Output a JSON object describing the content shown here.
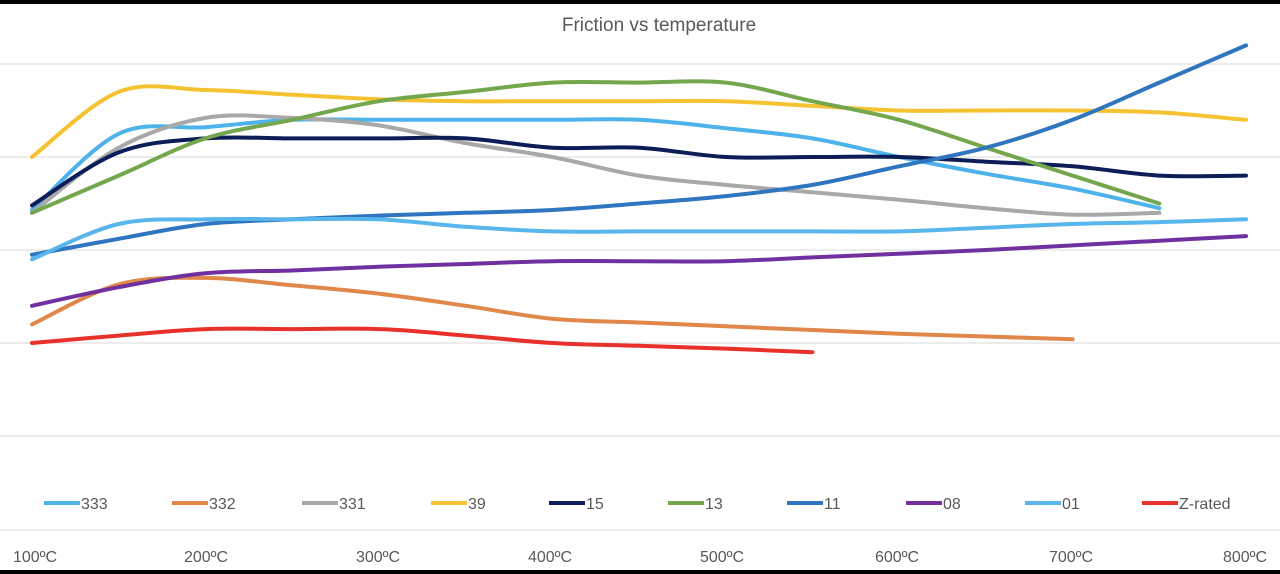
{
  "chart_data": {
    "type": "line",
    "title": "Friction vs temperature",
    "xlabel": "",
    "ylabel": "",
    "x": [
      "100ºC",
      "200ºC",
      "300ºC",
      "400ºC",
      "500ºC",
      "600ºC",
      "700ºC",
      "800ºC"
    ],
    "y_gridlines": [
      0.0,
      0.1,
      0.2,
      0.3,
      0.4,
      0.5
    ],
    "ylim": [
      0.0,
      0.5
    ],
    "grid": true,
    "y_tick_labels_visible": false,
    "legend_position": "bottom",
    "series": [
      {
        "name": "333",
        "color": "#4db3ea",
        "points": [
          [
            100,
            0.243
          ],
          [
            150,
            0.325
          ],
          [
            200,
            0.332
          ],
          [
            250,
            0.34
          ],
          [
            300,
            0.34
          ],
          [
            350,
            0.34
          ],
          [
            400,
            0.34
          ],
          [
            450,
            0.34
          ],
          [
            500,
            0.331
          ],
          [
            550,
            0.32
          ],
          [
            600,
            0.3
          ],
          [
            650,
            0.282
          ],
          [
            700,
            0.266
          ],
          [
            750,
            0.245
          ]
        ]
      },
      {
        "name": "332",
        "color": "#e0874a",
        "points": [
          [
            100,
            0.12
          ],
          [
            150,
            0.163
          ],
          [
            200,
            0.17
          ],
          [
            250,
            0.162
          ],
          [
            300,
            0.153
          ],
          [
            350,
            0.14
          ],
          [
            400,
            0.126
          ],
          [
            450,
            0.122
          ],
          [
            500,
            0.118
          ],
          [
            550,
            0.114
          ],
          [
            600,
            0.11
          ],
          [
            650,
            0.107
          ],
          [
            700,
            0.104
          ]
        ]
      },
      {
        "name": "331",
        "color": "#a8a8a8",
        "points": [
          [
            100,
            0.24
          ],
          [
            150,
            0.31
          ],
          [
            200,
            0.342
          ],
          [
            250,
            0.342
          ],
          [
            300,
            0.334
          ],
          [
            350,
            0.315
          ],
          [
            400,
            0.3
          ],
          [
            450,
            0.28
          ],
          [
            500,
            0.27
          ],
          [
            550,
            0.262
          ],
          [
            600,
            0.254
          ],
          [
            650,
            0.245
          ],
          [
            700,
            0.238
          ],
          [
            750,
            0.24
          ]
        ]
      },
      {
        "name": "39",
        "color": "#f5c231",
        "points": [
          [
            100,
            0.3
          ],
          [
            150,
            0.37
          ],
          [
            200,
            0.372
          ],
          [
            250,
            0.367
          ],
          [
            300,
            0.362
          ],
          [
            350,
            0.36
          ],
          [
            400,
            0.36
          ],
          [
            450,
            0.36
          ],
          [
            500,
            0.36
          ],
          [
            550,
            0.355
          ],
          [
            600,
            0.35
          ],
          [
            650,
            0.35
          ],
          [
            700,
            0.35
          ],
          [
            750,
            0.348
          ],
          [
            800,
            0.34
          ]
        ]
      },
      {
        "name": "15",
        "color": "#0c1d57",
        "points": [
          [
            100,
            0.248
          ],
          [
            150,
            0.305
          ],
          [
            200,
            0.32
          ],
          [
            250,
            0.32
          ],
          [
            300,
            0.32
          ],
          [
            350,
            0.32
          ],
          [
            400,
            0.31
          ],
          [
            450,
            0.31
          ],
          [
            500,
            0.3
          ],
          [
            550,
            0.3
          ],
          [
            600,
            0.3
          ],
          [
            650,
            0.295
          ],
          [
            700,
            0.29
          ],
          [
            750,
            0.28
          ],
          [
            800,
            0.28
          ]
        ]
      },
      {
        "name": "13",
        "color": "#74a74d",
        "points": [
          [
            100,
            0.24
          ],
          [
            150,
            0.28
          ],
          [
            200,
            0.32
          ],
          [
            250,
            0.34
          ],
          [
            300,
            0.36
          ],
          [
            350,
            0.37
          ],
          [
            400,
            0.38
          ],
          [
            450,
            0.38
          ],
          [
            500,
            0.38
          ],
          [
            550,
            0.36
          ],
          [
            600,
            0.34
          ],
          [
            650,
            0.31
          ],
          [
            700,
            0.28
          ],
          [
            750,
            0.25
          ]
        ]
      },
      {
        "name": "11",
        "color": "#2f75bf",
        "points": [
          [
            100,
            0.195
          ],
          [
            150,
            0.212
          ],
          [
            200,
            0.228
          ],
          [
            250,
            0.233
          ],
          [
            300,
            0.237
          ],
          [
            350,
            0.24
          ],
          [
            400,
            0.243
          ],
          [
            450,
            0.25
          ],
          [
            500,
            0.258
          ],
          [
            550,
            0.27
          ],
          [
            600,
            0.29
          ],
          [
            650,
            0.31
          ],
          [
            700,
            0.34
          ],
          [
            750,
            0.38
          ],
          [
            800,
            0.42
          ]
        ]
      },
      {
        "name": "08",
        "color": "#7130a0",
        "points": [
          [
            100,
            0.14
          ],
          [
            150,
            0.16
          ],
          [
            200,
            0.175
          ],
          [
            250,
            0.178
          ],
          [
            300,
            0.182
          ],
          [
            350,
            0.185
          ],
          [
            400,
            0.188
          ],
          [
            450,
            0.188
          ],
          [
            500,
            0.188
          ],
          [
            550,
            0.192
          ],
          [
            600,
            0.196
          ],
          [
            650,
            0.2
          ],
          [
            700,
            0.205
          ],
          [
            750,
            0.21
          ],
          [
            800,
            0.215
          ]
        ]
      },
      {
        "name": "01",
        "color": "#58b6ec",
        "points": [
          [
            100,
            0.19
          ],
          [
            150,
            0.228
          ],
          [
            200,
            0.233
          ],
          [
            250,
            0.233
          ],
          [
            300,
            0.233
          ],
          [
            350,
            0.225
          ],
          [
            400,
            0.22
          ],
          [
            450,
            0.22
          ],
          [
            500,
            0.22
          ],
          [
            550,
            0.22
          ],
          [
            600,
            0.22
          ],
          [
            650,
            0.224
          ],
          [
            700,
            0.228
          ],
          [
            750,
            0.23
          ],
          [
            800,
            0.233
          ]
        ]
      },
      {
        "name": "Z-rated",
        "color": "#e8312a",
        "points": [
          [
            100,
            0.1
          ],
          [
            150,
            0.108
          ],
          [
            200,
            0.115
          ],
          [
            250,
            0.115
          ],
          [
            300,
            0.115
          ],
          [
            350,
            0.108
          ],
          [
            400,
            0.1
          ],
          [
            450,
            0.097
          ],
          [
            500,
            0.094
          ],
          [
            550,
            0.09
          ]
        ]
      }
    ]
  }
}
